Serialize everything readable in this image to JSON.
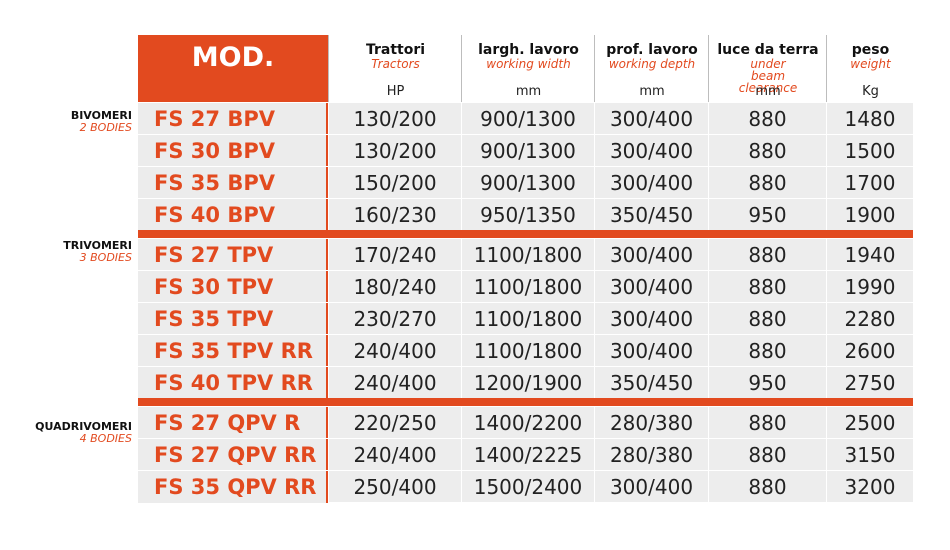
{
  "header": {
    "mod": "MOD.",
    "columns": [
      {
        "it": "Trattori",
        "en": "Tractors",
        "unit": "HP"
      },
      {
        "it": "largh. lavoro",
        "en": "working width",
        "unit": "mm"
      },
      {
        "it": "prof. lavoro",
        "en": "working depth",
        "unit": "mm"
      },
      {
        "it": "luce da terra",
        "en": "under beam clearance",
        "unit": "mm"
      },
      {
        "it": "peso",
        "en": "weight",
        "unit": "Kg"
      }
    ]
  },
  "groups": [
    {
      "title": "BIVOMERI",
      "subtitle": "2 BODIES",
      "rows": [
        {
          "model": "FS 27 BPV",
          "hp": "130/200",
          "width": "900/1300",
          "depth": "300/400",
          "clearance": "880",
          "weight": "1480"
        },
        {
          "model": "FS 30 BPV",
          "hp": "130/200",
          "width": "900/1300",
          "depth": "300/400",
          "clearance": "880",
          "weight": "1500"
        },
        {
          "model": "FS 35 BPV",
          "hp": "150/200",
          "width": "900/1300",
          "depth": "300/400",
          "clearance": "880",
          "weight": "1700"
        },
        {
          "model": "FS 40 BPV",
          "hp": "160/230",
          "width": "950/1350",
          "depth": "350/450",
          "clearance": "950",
          "weight": "1900"
        }
      ]
    },
    {
      "title": "TRIVOMERI",
      "subtitle": "3 BODIES",
      "rows": [
        {
          "model": "FS 27 TPV",
          "hp": "170/240",
          "width": "1100/1800",
          "depth": "300/400",
          "clearance": "880",
          "weight": "1940"
        },
        {
          "model": "FS 30 TPV",
          "hp": "180/240",
          "width": "1100/1800",
          "depth": "300/400",
          "clearance": "880",
          "weight": "1990"
        },
        {
          "model": "FS 35 TPV",
          "hp": "230/270",
          "width": "1100/1800",
          "depth": "300/400",
          "clearance": "880",
          "weight": "2280"
        },
        {
          "model": "FS 35 TPV RR",
          "hp": "240/400",
          "width": "1100/1800",
          "depth": "300/400",
          "clearance": "880",
          "weight": "2600"
        },
        {
          "model": "FS 40 TPV RR",
          "hp": "240/400",
          "width": "1200/1900",
          "depth": "350/450",
          "clearance": "950",
          "weight": "2750"
        }
      ]
    },
    {
      "title": "QUADRIVOMERI",
      "subtitle": "4 BODIES",
      "rows": [
        {
          "model": "FS 27 QPV R",
          "hp": "220/250",
          "width": "1400/2200",
          "depth": "280/380",
          "clearance": "880",
          "weight": "2500"
        },
        {
          "model": "FS 27 QPV RR",
          "hp": "240/400",
          "width": "1400/2225",
          "depth": "280/380",
          "clearance": "880",
          "weight": "3150"
        },
        {
          "model": "FS 35 QPV RR",
          "hp": "250/400",
          "width": "1500/2400",
          "depth": "300/400",
          "clearance": "880",
          "weight": "3200"
        }
      ]
    }
  ],
  "colors": {
    "accent": "#e24a1f",
    "row_bg": "#ededed"
  }
}
